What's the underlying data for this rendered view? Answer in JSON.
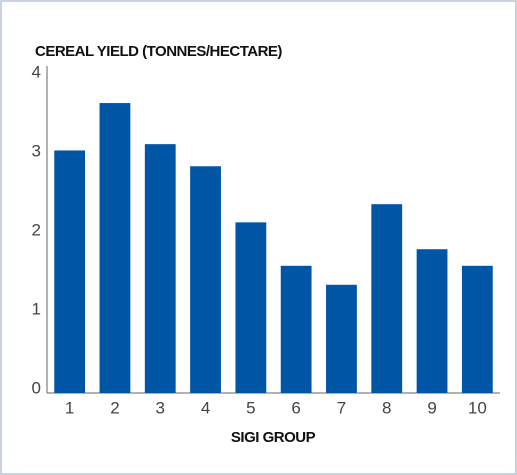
{
  "chart_data": {
    "type": "bar",
    "title": "CEREAL YIELD (TONNES/HECTARE)",
    "x_label": "SIGI GROUP",
    "categories": [
      "1",
      "2",
      "3",
      "4",
      "5",
      "6",
      "7",
      "8",
      "9",
      "10"
    ],
    "values": [
      3.07,
      3.67,
      3.15,
      2.87,
      2.16,
      1.61,
      1.37,
      2.39,
      1.82,
      1.61
    ],
    "color": "#0055a5",
    "ylim": [
      0,
      4
    ],
    "yticks": [
      0,
      1,
      2,
      3,
      4
    ],
    "grid": false
  }
}
